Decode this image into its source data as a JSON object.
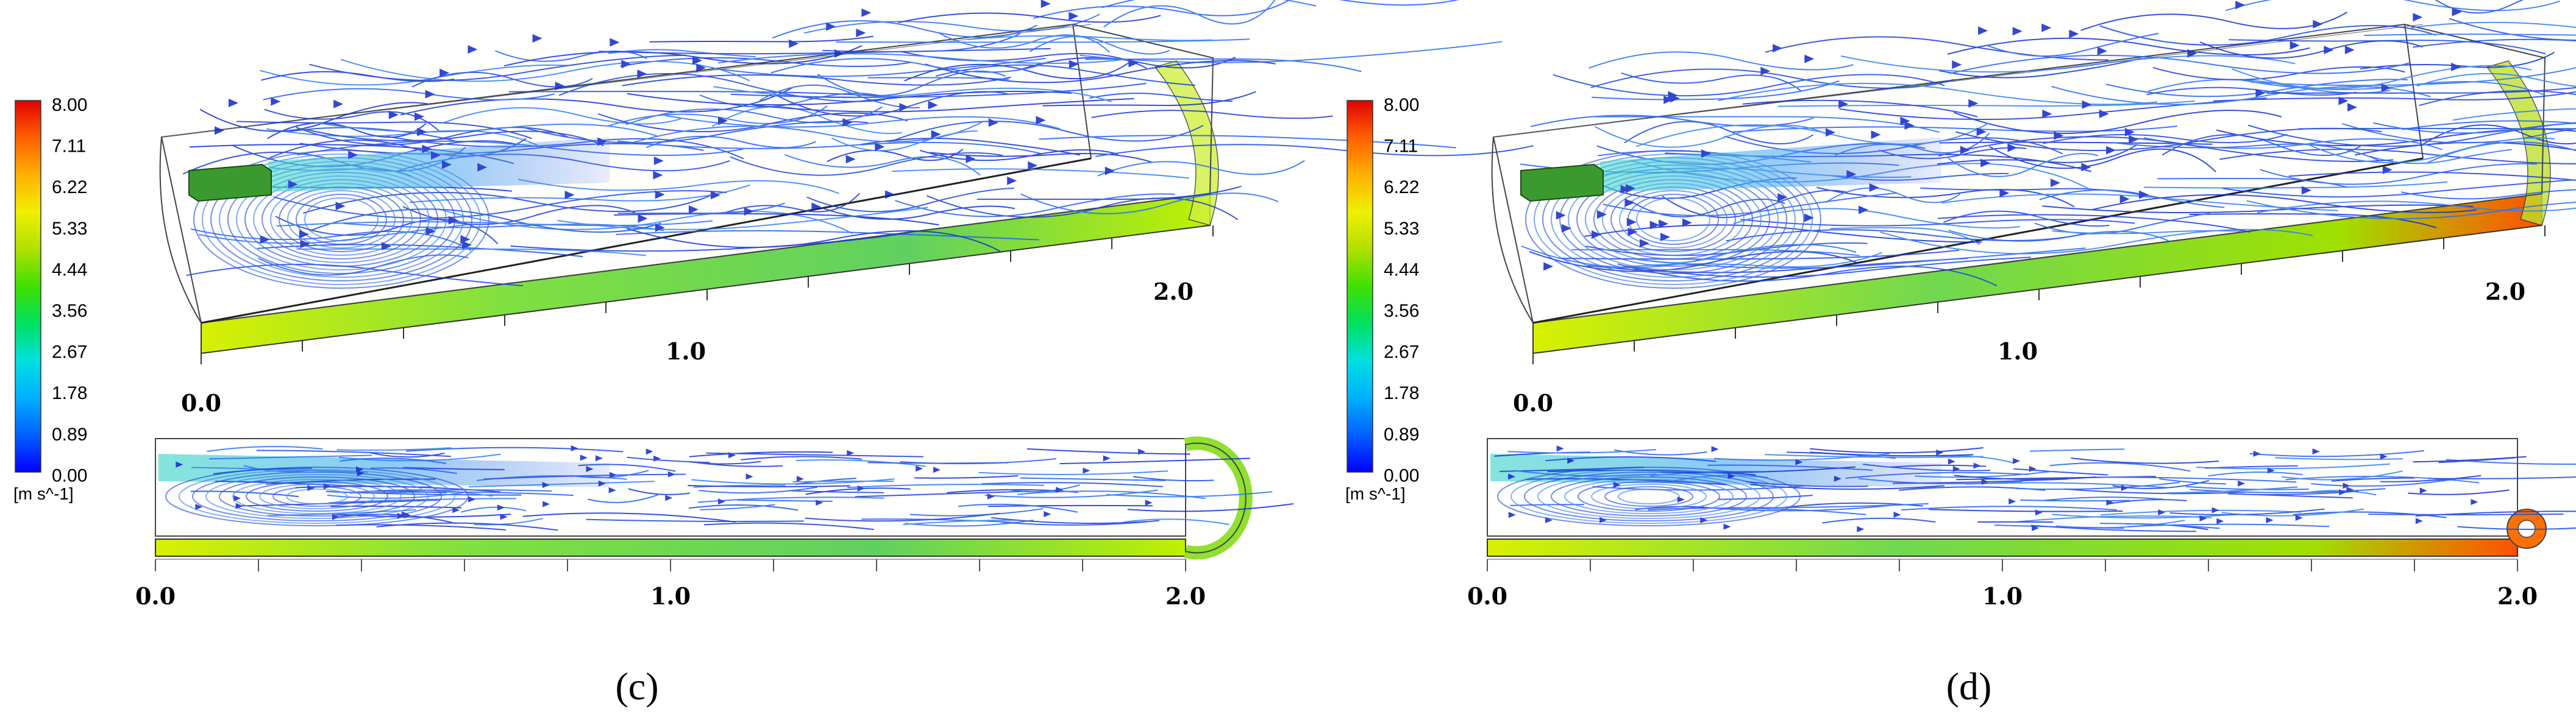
{
  "colorbar": {
    "ticks": [
      "8.00",
      "7.11",
      "6.22",
      "5.33",
      "4.44",
      "3.56",
      "2.67",
      "1.78",
      "0.89",
      "0.00"
    ],
    "unit": "[m s^-1]",
    "colors": [
      "#0000ff",
      "#0060ff",
      "#00b0ff",
      "#00e0e0",
      "#00e060",
      "#40e000",
      "#b0e000",
      "#f0f000",
      "#ffb000",
      "#ff6000",
      "#e00000"
    ]
  },
  "panels": [
    {
      "caption": "(c)",
      "iso_axis": [
        "0.0",
        "1.0",
        "2.0"
      ],
      "top_axis": [
        "0.0",
        "1.0",
        "2.0"
      ]
    },
    {
      "caption": "(d)",
      "iso_axis": [
        "0.0",
        "1.0",
        "2.0"
      ],
      "top_axis": [
        "0.0",
        "1.0",
        "2.0"
      ]
    }
  ]
}
